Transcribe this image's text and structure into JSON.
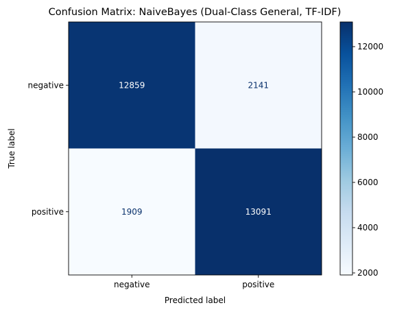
{
  "chart_data": {
    "type": "heatmap",
    "title": "Confusion Matrix: NaiveBayes (Dual-Class General, TF-IDF)",
    "xlabel": "Predicted label",
    "ylabel": "True label",
    "x_categories": [
      "negative",
      "positive"
    ],
    "y_categories": [
      "negative",
      "positive"
    ],
    "values": [
      [
        12859,
        2141
      ],
      [
        1909,
        13091
      ]
    ],
    "colormap": "Blues",
    "colorbar": {
      "min": 1909,
      "max": 13091,
      "ticks": [
        2000,
        4000,
        6000,
        8000,
        10000,
        12000
      ]
    },
    "text_colors": {
      "dark": "#08306b",
      "light": "#ffffff"
    }
  }
}
